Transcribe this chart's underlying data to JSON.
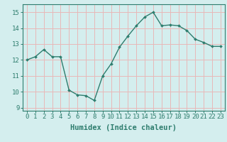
{
  "x": [
    0,
    1,
    2,
    3,
    4,
    5,
    6,
    7,
    8,
    9,
    10,
    11,
    12,
    13,
    14,
    15,
    16,
    17,
    18,
    19,
    20,
    21,
    22,
    23
  ],
  "y": [
    12.0,
    12.2,
    12.65,
    12.2,
    12.2,
    10.1,
    9.8,
    9.75,
    9.45,
    11.0,
    11.75,
    12.8,
    13.5,
    14.15,
    14.7,
    15.0,
    14.15,
    14.2,
    14.15,
    13.85,
    13.3,
    13.1,
    12.85,
    12.85
  ],
  "line_color": "#2e7d6e",
  "marker": "D",
  "marker_size": 2.0,
  "bg_color": "#d4eeee",
  "grid_color": "#e8b8b8",
  "axis_color": "#2e7d6e",
  "xlabel": "Humidex (Indice chaleur)",
  "xlim": [
    -0.5,
    23.5
  ],
  "ylim": [
    8.8,
    15.5
  ],
  "yticks": [
    9,
    10,
    11,
    12,
    13,
    14,
    15
  ],
  "xticks": [
    0,
    1,
    2,
    3,
    4,
    5,
    6,
    7,
    8,
    9,
    10,
    11,
    12,
    13,
    14,
    15,
    16,
    17,
    18,
    19,
    20,
    21,
    22,
    23
  ],
  "xlabel_fontsize": 7.5,
  "tick_fontsize": 6.5,
  "line_width": 1.0
}
